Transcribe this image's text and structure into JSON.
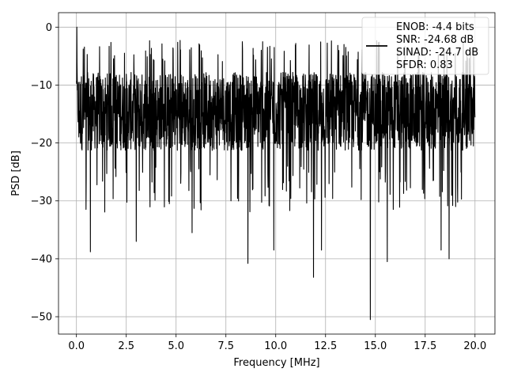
{
  "chart_data": {
    "type": "line",
    "title": "",
    "xlabel": "Frequency [MHz]",
    "ylabel": "PSD [dB]",
    "xlim": [
      -0.9,
      21.0
    ],
    "ylim": [
      -53,
      2.5
    ],
    "grid": true,
    "legend_position": "top-right",
    "x_ticks": [
      0.0,
      2.5,
      5.0,
      7.5,
      10.0,
      12.5,
      15.0,
      17.5,
      20.0
    ],
    "x_tick_labels": [
      "0.0",
      "2.5",
      "5.0",
      "7.5",
      "10.0",
      "12.5",
      "15.0",
      "17.5",
      "20.0"
    ],
    "y_ticks": [
      0,
      -10,
      -20,
      -30,
      -40,
      -50
    ],
    "y_tick_labels": [
      "0",
      "−10",
      "−20",
      "−30",
      "−40",
      "−50"
    ],
    "legend": {
      "line_color": "#000000",
      "entries": [
        "ENOB: -4.4 bits",
        "SNR: -24.68 dB",
        "SINAD: -24.7 dB",
        "SFDR: 0.83"
      ]
    },
    "series": [
      {
        "color": "#000000",
        "x_range": [
          0.0,
          20.0
        ],
        "n_points": 2000,
        "typical_band": [
          -24,
          -6
        ],
        "peak": {
          "x": 0.02,
          "y": 0.0
        },
        "minimum": {
          "x": 14.75,
          "y": -50.5
        },
        "notable_dips": [
          {
            "x": 0.7,
            "y": -38.8
          },
          {
            "x": 3.0,
            "y": -37.0
          },
          {
            "x": 5.8,
            "y": -35.5
          },
          {
            "x": 8.6,
            "y": -40.8
          },
          {
            "x": 9.9,
            "y": -38.5
          },
          {
            "x": 11.9,
            "y": -43.2
          },
          {
            "x": 12.3,
            "y": -38.5
          },
          {
            "x": 15.6,
            "y": -40.5
          },
          {
            "x": 18.3,
            "y": -38.5
          },
          {
            "x": 18.7,
            "y": -40.0
          }
        ]
      }
    ]
  }
}
